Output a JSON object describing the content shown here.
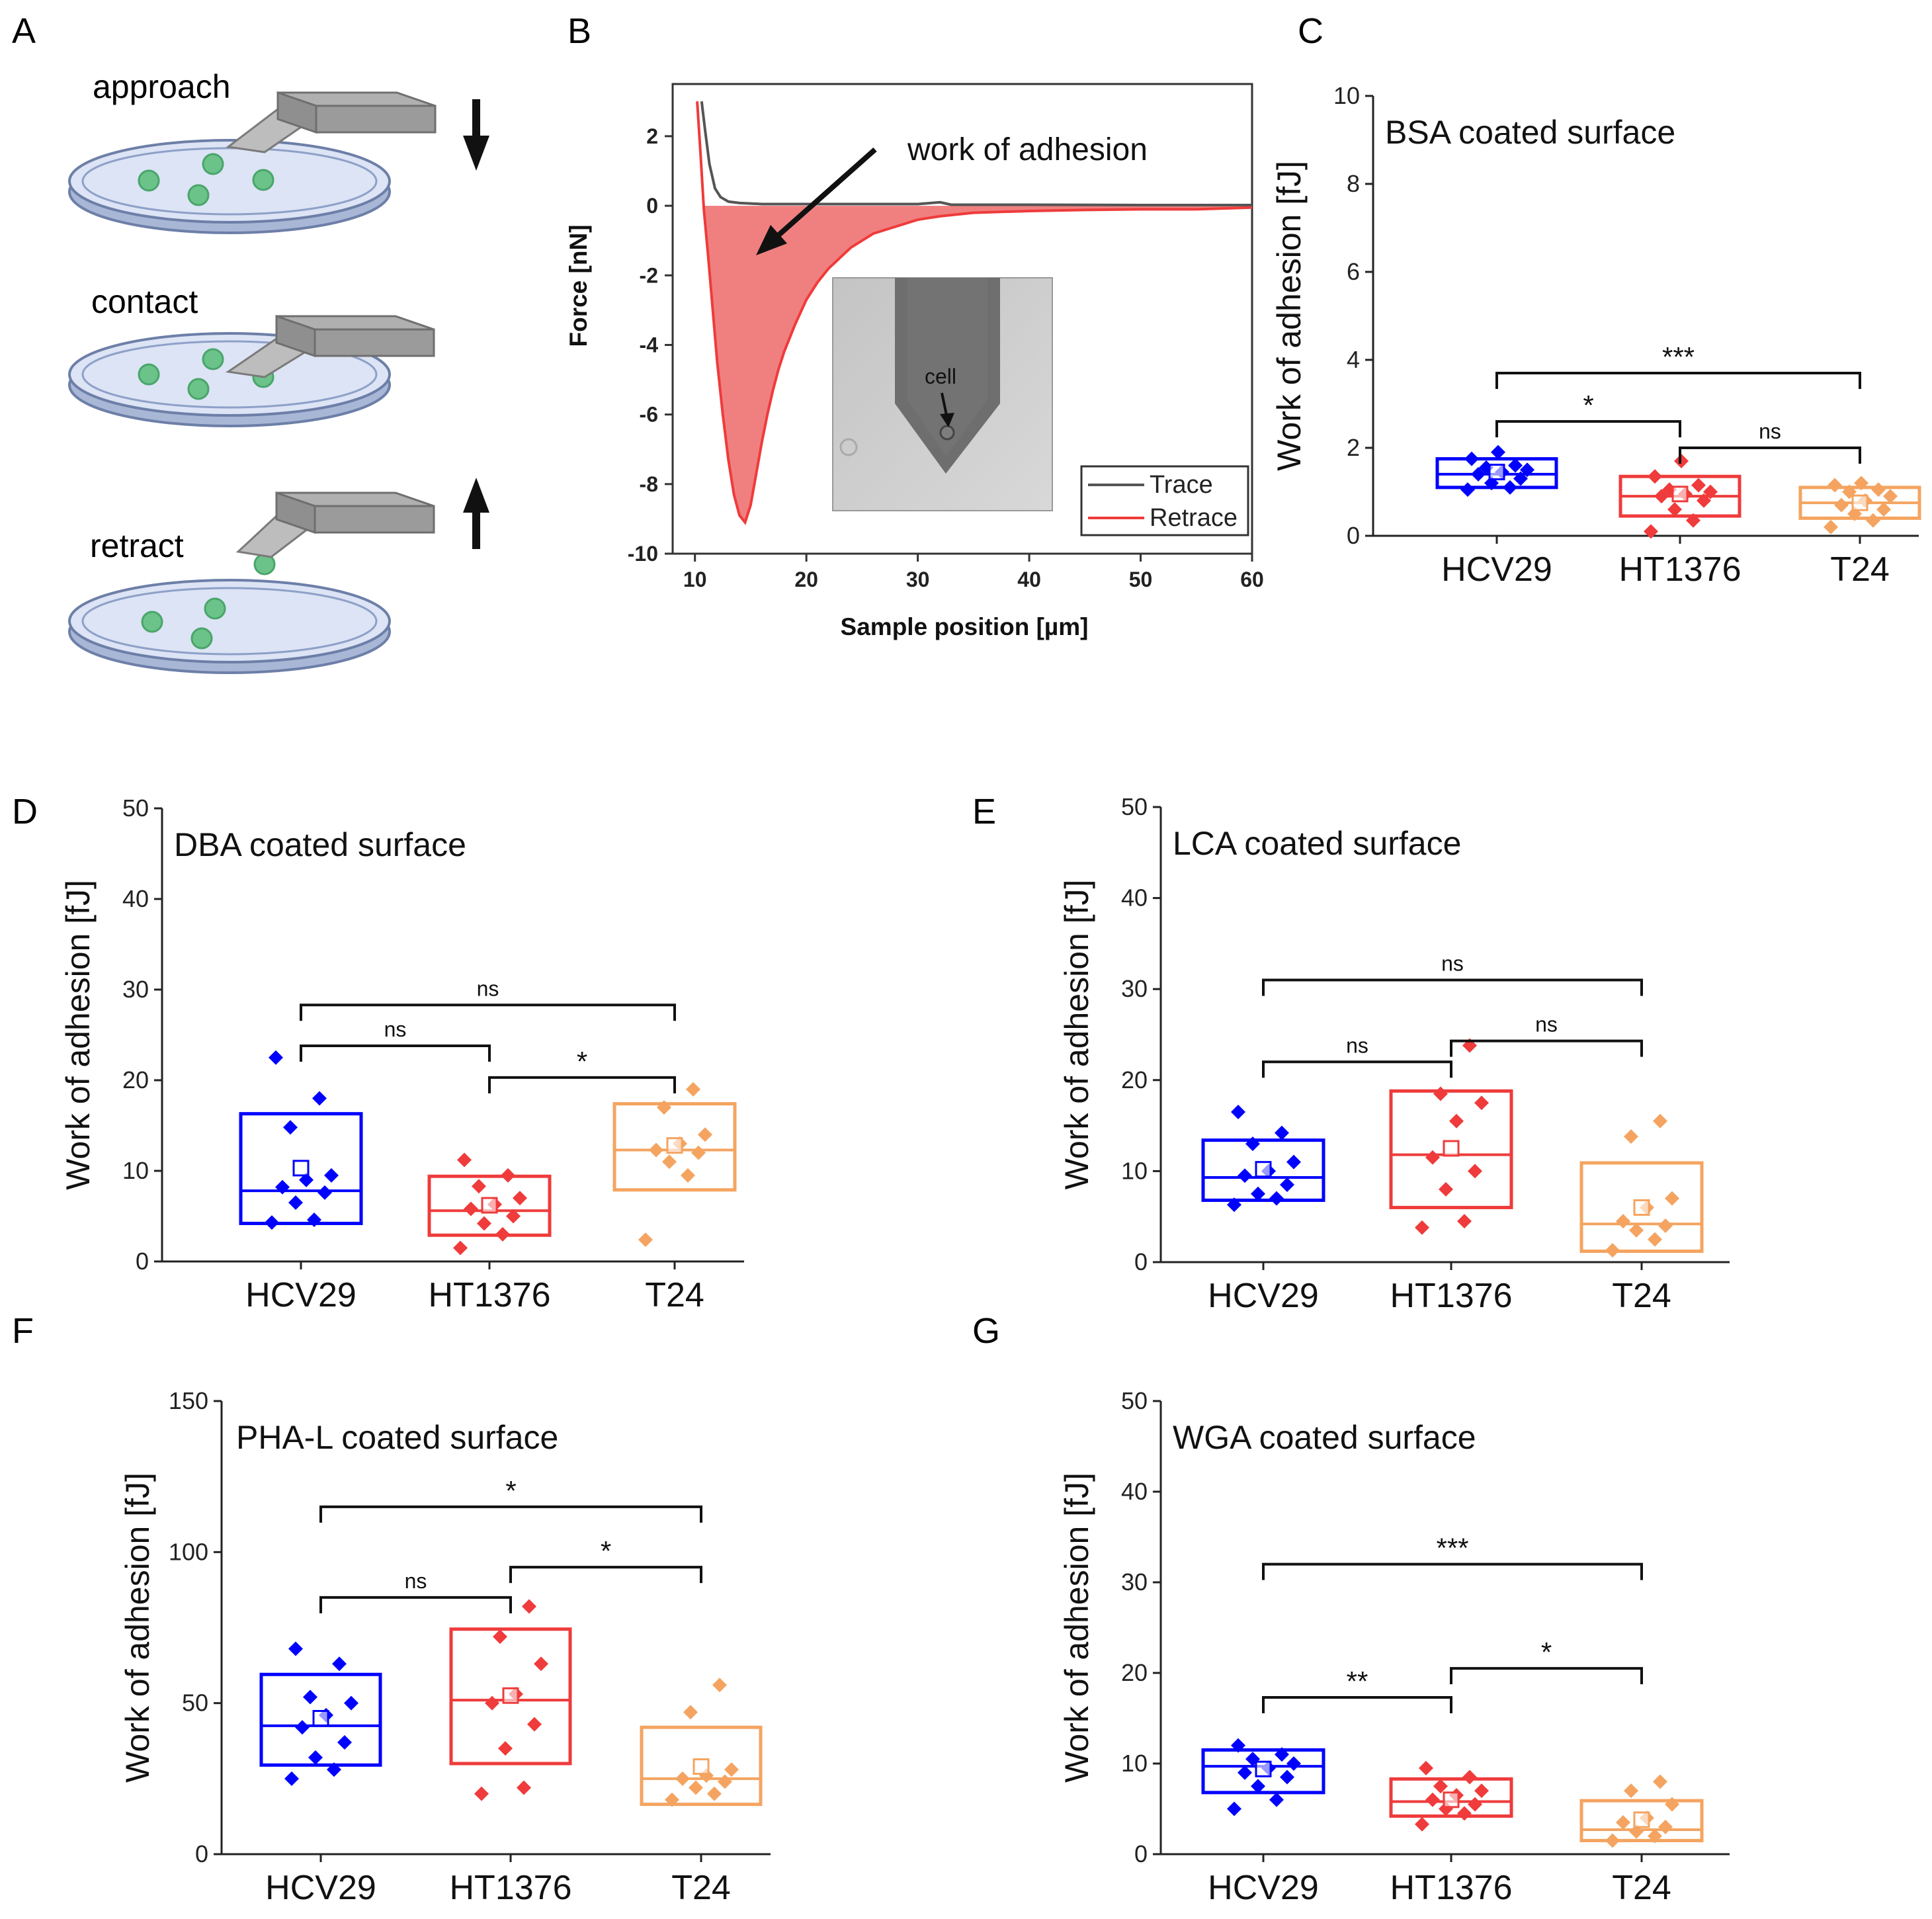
{
  "figure": {
    "panel_letters": [
      "A",
      "B",
      "C",
      "D",
      "E",
      "F",
      "G"
    ],
    "panel_a": {
      "steps": [
        "approach",
        "contact",
        "retract"
      ],
      "arrows": [
        "down-arrow-icon",
        "up-arrow-icon"
      ]
    }
  },
  "colors": {
    "HCV29": "#0000ff",
    "HT1376": "#ef3b3b",
    "T24": "#f4a460",
    "retrace_fill": "#f08080",
    "trace": "#555555",
    "dish_fill": "#dce4f5",
    "dish_edge": "#6d7fa8",
    "cell": "#6cc38a",
    "cantilever": "#9e9e9e"
  },
  "chart_data": [
    {
      "panel": "B",
      "type": "line",
      "ylabel": "Force [nN]",
      "xlabel": "Sample position [µm]",
      "xlim": [
        8,
        60
      ],
      "ylim": [
        -10,
        3.5
      ],
      "xticks": [
        10,
        20,
        30,
        40,
        50,
        60
      ],
      "yticks": [
        2,
        0,
        -2,
        -4,
        -6,
        -8,
        -10
      ],
      "annotation": "work of adhesion",
      "inset_label": "cell",
      "legend": [
        "Trace",
        "Retrace"
      ],
      "series": [
        {
          "name": "Trace",
          "x": [
            10.6,
            10.9,
            11.3,
            11.8,
            12.3,
            13,
            14,
            16,
            20,
            25,
            30,
            32,
            33,
            40,
            50,
            60
          ],
          "y": [
            3.0,
            2.2,
            1.2,
            0.5,
            0.25,
            0.12,
            0.08,
            0.05,
            0.05,
            0.05,
            0.05,
            0.1,
            0.03,
            0.03,
            0.02,
            0.02
          ]
        },
        {
          "name": "Retrace",
          "x": [
            10.2,
            10.5,
            10.8,
            11.2,
            11.6,
            12,
            12.5,
            13,
            13.5,
            14,
            14.5,
            15,
            15.5,
            16,
            16.5,
            17,
            17.5,
            18,
            19,
            20,
            21,
            22,
            23,
            24,
            25,
            26,
            27,
            28,
            29,
            30,
            32,
            35,
            40,
            45,
            50,
            55,
            60
          ],
          "y": [
            3.0,
            1.5,
            -0.1,
            -1.5,
            -3.0,
            -4.5,
            -6.0,
            -7.3,
            -8.3,
            -8.9,
            -9.1,
            -8.6,
            -7.7,
            -6.8,
            -6.0,
            -5.3,
            -4.7,
            -4.2,
            -3.4,
            -2.7,
            -2.2,
            -1.8,
            -1.5,
            -1.2,
            -1.0,
            -0.8,
            -0.7,
            -0.6,
            -0.5,
            -0.4,
            -0.3,
            -0.2,
            -0.15,
            -0.12,
            -0.1,
            -0.1,
            -0.05
          ]
        }
      ]
    },
    {
      "panel": "C",
      "type": "box",
      "title": "BSA coated surface",
      "ylabel": "Work of adhesion [fJ]",
      "ylim": [
        0,
        10
      ],
      "yticks": [
        0,
        2,
        4,
        6,
        8,
        10
      ],
      "categories": [
        "HCV29",
        "HT1376",
        "T24"
      ],
      "boxes": [
        {
          "q1": 1.1,
          "median": 1.4,
          "q3": 1.75,
          "mean": 1.45,
          "points": [
            1.05,
            1.1,
            1.2,
            1.3,
            1.4,
            1.45,
            1.5,
            1.55,
            1.6,
            1.75,
            1.9
          ]
        },
        {
          "q1": 0.45,
          "median": 0.9,
          "q3": 1.35,
          "mean": 0.95,
          "points": [
            0.1,
            0.35,
            0.6,
            0.8,
            0.9,
            0.95,
            1.0,
            1.05,
            1.15,
            1.35,
            1.7
          ]
        },
        {
          "q1": 0.4,
          "median": 0.75,
          "q3": 1.1,
          "mean": 0.75,
          "points": [
            0.2,
            0.35,
            0.5,
            0.6,
            0.7,
            0.8,
            0.9,
            1.0,
            1.05,
            1.15,
            1.2
          ]
        }
      ],
      "brackets": [
        {
          "from": 0,
          "to": 2,
          "y": 3.7,
          "label": "***"
        },
        {
          "from": 0,
          "to": 1,
          "y": 2.6,
          "label": "*"
        },
        {
          "from": 1,
          "to": 2,
          "y": 2.0,
          "label": "ns"
        }
      ]
    },
    {
      "panel": "D",
      "type": "box",
      "title": "DBA coated surface",
      "ylabel": "Work of adhesion [fJ]",
      "ylim": [
        0,
        50
      ],
      "yticks": [
        0,
        10,
        20,
        30,
        40,
        50
      ],
      "categories": [
        "HCV29",
        "HT1376",
        "T24"
      ],
      "boxes": [
        {
          "q1": 4.2,
          "median": 7.8,
          "q3": 16.3,
          "mean": 10.3,
          "points": [
            4.3,
            4.6,
            6.5,
            7.6,
            8.2,
            9.0,
            9.5,
            14.8,
            18.0,
            22.5
          ]
        },
        {
          "q1": 2.9,
          "median": 5.6,
          "q3": 9.4,
          "mean": 6.2,
          "points": [
            1.5,
            3.0,
            4.2,
            5.0,
            5.8,
            6.3,
            7.0,
            8.3,
            9.5,
            11.2
          ]
        },
        {
          "q1": 7.9,
          "median": 12.3,
          "q3": 17.4,
          "mean": 12.8,
          "points": [
            2.4,
            9.5,
            11.0,
            12.0,
            12.3,
            13.0,
            14.0,
            17.0,
            19.0
          ]
        }
      ],
      "brackets": [
        {
          "from": 0,
          "to": 2,
          "y": 28.3,
          "label": "ns"
        },
        {
          "from": 0,
          "to": 1,
          "y": 23.8,
          "label": "ns"
        },
        {
          "from": 1,
          "to": 2,
          "y": 20.3,
          "label": "*"
        }
      ]
    },
    {
      "panel": "E",
      "type": "box",
      "title": "LCA coated surface",
      "ylabel": "Work of adhesion [fJ]",
      "ylim": [
        0,
        50
      ],
      "yticks": [
        0,
        10,
        20,
        30,
        40,
        50
      ],
      "categories": [
        "HCV29",
        "HT1376",
        "T24"
      ],
      "boxes": [
        {
          "q1": 6.8,
          "median": 9.3,
          "q3": 13.4,
          "mean": 10.2,
          "points": [
            6.3,
            7.0,
            7.5,
            8.5,
            9.5,
            10.0,
            11.0,
            13.0,
            14.2,
            16.5
          ]
        },
        {
          "q1": 6.0,
          "median": 11.8,
          "q3": 18.8,
          "mean": 12.5,
          "points": [
            3.8,
            4.5,
            8.0,
            10.0,
            11.5,
            15.5,
            17.5,
            18.5,
            23.8
          ]
        },
        {
          "q1": 1.2,
          "median": 4.2,
          "q3": 10.9,
          "mean": 6.0,
          "points": [
            1.3,
            2.5,
            3.5,
            4.0,
            4.5,
            6.0,
            7.0,
            13.8,
            15.5
          ]
        }
      ],
      "brackets": [
        {
          "from": 0,
          "to": 2,
          "y": 31.0,
          "label": "ns"
        },
        {
          "from": 0,
          "to": 1,
          "y": 22.0,
          "label": "ns"
        },
        {
          "from": 1,
          "to": 2,
          "y": 24.3,
          "label": "ns"
        }
      ]
    },
    {
      "panel": "F",
      "type": "box",
      "title": "PHA-L coated surface",
      "ylabel": "Work of adhesion [fJ]",
      "ylim": [
        0,
        150
      ],
      "yticks": [
        0,
        50,
        100,
        150
      ],
      "categories": [
        "HCV29",
        "HT1376",
        "T24"
      ],
      "boxes": [
        {
          "q1": 29.5,
          "median": 42.5,
          "q3": 59.5,
          "mean": 45.0,
          "points": [
            25.0,
            28.0,
            32.0,
            37.0,
            42.0,
            46.0,
            50.0,
            52.0,
            63.0,
            68.0
          ]
        },
        {
          "q1": 30.0,
          "median": 51.0,
          "q3": 74.5,
          "mean": 52.5,
          "points": [
            20.0,
            22.0,
            35.0,
            43.0,
            50.0,
            53.0,
            63.0,
            72.0,
            82.0
          ]
        },
        {
          "q1": 16.5,
          "median": 25.0,
          "q3": 42.0,
          "mean": 29.0,
          "points": [
            18.0,
            20.0,
            22.0,
            24.0,
            25.0,
            26.0,
            28.0,
            47.0,
            56.0
          ]
        }
      ],
      "brackets": [
        {
          "from": 0,
          "to": 2,
          "y": 115.0,
          "label": "*"
        },
        {
          "from": 0,
          "to": 1,
          "y": 85.0,
          "label": "ns"
        },
        {
          "from": 1,
          "to": 2,
          "y": 95.0,
          "label": "*"
        }
      ]
    },
    {
      "panel": "G",
      "type": "box",
      "title": "WGA coated surface",
      "ylabel": "Work of adhesion [fJ]",
      "ylim": [
        0,
        50
      ],
      "yticks": [
        0,
        10,
        20,
        30,
        40,
        50
      ],
      "categories": [
        "HCV29",
        "HT1376",
        "T24"
      ],
      "boxes": [
        {
          "q1": 6.8,
          "median": 9.7,
          "q3": 11.5,
          "mean": 9.4,
          "points": [
            5.0,
            6.0,
            7.5,
            8.5,
            9.0,
            9.5,
            10.0,
            10.5,
            11.0,
            12.0
          ]
        },
        {
          "q1": 4.2,
          "median": 5.8,
          "q3": 8.3,
          "mean": 6.0,
          "points": [
            3.3,
            4.5,
            5.0,
            5.5,
            6.0,
            6.5,
            7.0,
            7.5,
            8.5,
            9.5
          ]
        },
        {
          "q1": 1.5,
          "median": 2.7,
          "q3": 5.9,
          "mean": 3.8,
          "points": [
            1.5,
            2.0,
            2.5,
            3.0,
            3.5,
            4.0,
            5.5,
            7.0,
            8.0
          ]
        }
      ],
      "brackets": [
        {
          "from": 0,
          "to": 2,
          "y": 32.0,
          "label": "***"
        },
        {
          "from": 0,
          "to": 1,
          "y": 17.3,
          "label": "**"
        },
        {
          "from": 1,
          "to": 2,
          "y": 20.5,
          "label": "*"
        }
      ]
    }
  ]
}
